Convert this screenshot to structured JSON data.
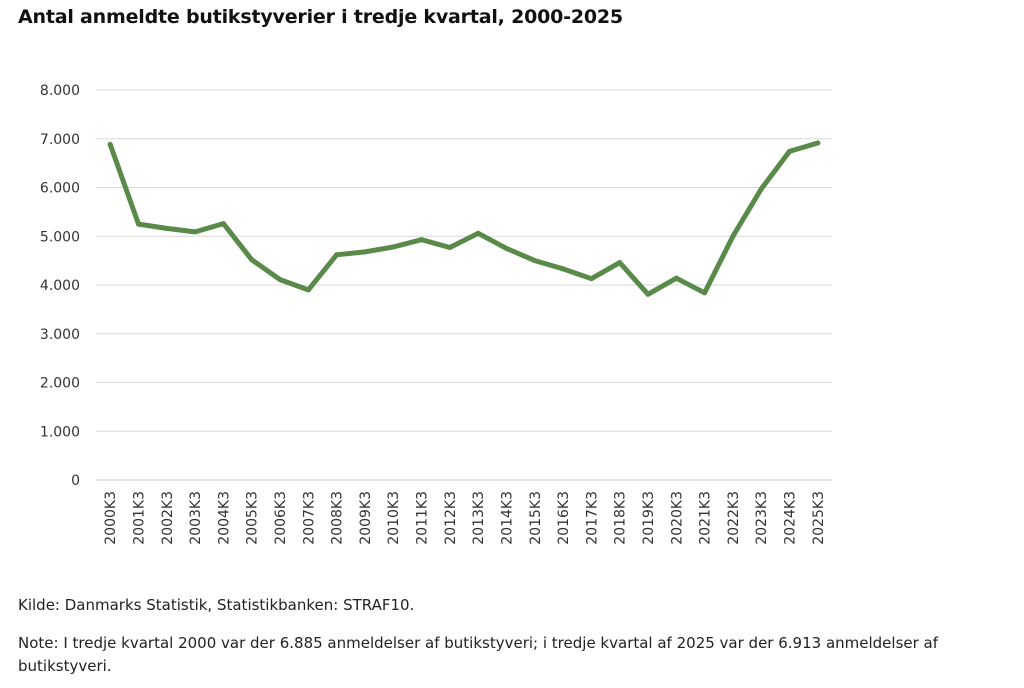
{
  "title": "Antal anmeldte butikstyverier i tredje kvartal, 2000-2025",
  "source": "Kilde: Danmarks Statistik, Statistikbanken: STRAF10.",
  "note": "Note: I tredje kvartal 2000 var der 6.885 anmeldelser af butikstyveri; i tredje kvartal af 2025 var der 6.913 anmeldelser af butikstyveri.",
  "colors": {
    "line": "#5a8a4a",
    "grid": "#d9d9d9",
    "text": "#333333"
  },
  "chart_data": {
    "type": "line",
    "title": "Antal anmeldte butikstyverier i tredje kvartal, 2000-2025",
    "xlabel": "",
    "ylabel": "",
    "ylim": [
      0,
      8000
    ],
    "yticks": [
      "0",
      "1.000",
      "2.000",
      "3.000",
      "4.000",
      "5.000",
      "6.000",
      "7.000",
      "8.000"
    ],
    "grid": true,
    "legend": "none",
    "categories": [
      "2000K3",
      "2001K3",
      "2002K3",
      "2003K3",
      "2004K3",
      "2005K3",
      "2006K3",
      "2007K3",
      "2008K3",
      "2009K3",
      "2010K3",
      "2011K3",
      "2012K3",
      "2013K3",
      "2014K3",
      "2015K3",
      "2016K3",
      "2017K3",
      "2018K3",
      "2019K3",
      "2020K3",
      "2021K3",
      "2022K3",
      "2023K3",
      "2024K3",
      "2025K3"
    ],
    "series": [
      {
        "values": [
          6885,
          5250,
          5160,
          5090,
          5260,
          4520,
          4110,
          3900,
          4620,
          4680,
          4780,
          4930,
          4770,
          5060,
          4750,
          4500,
          4330,
          4130,
          4460,
          3810,
          4140,
          3840,
          5000,
          5970,
          6740,
          6913
        ]
      }
    ]
  }
}
